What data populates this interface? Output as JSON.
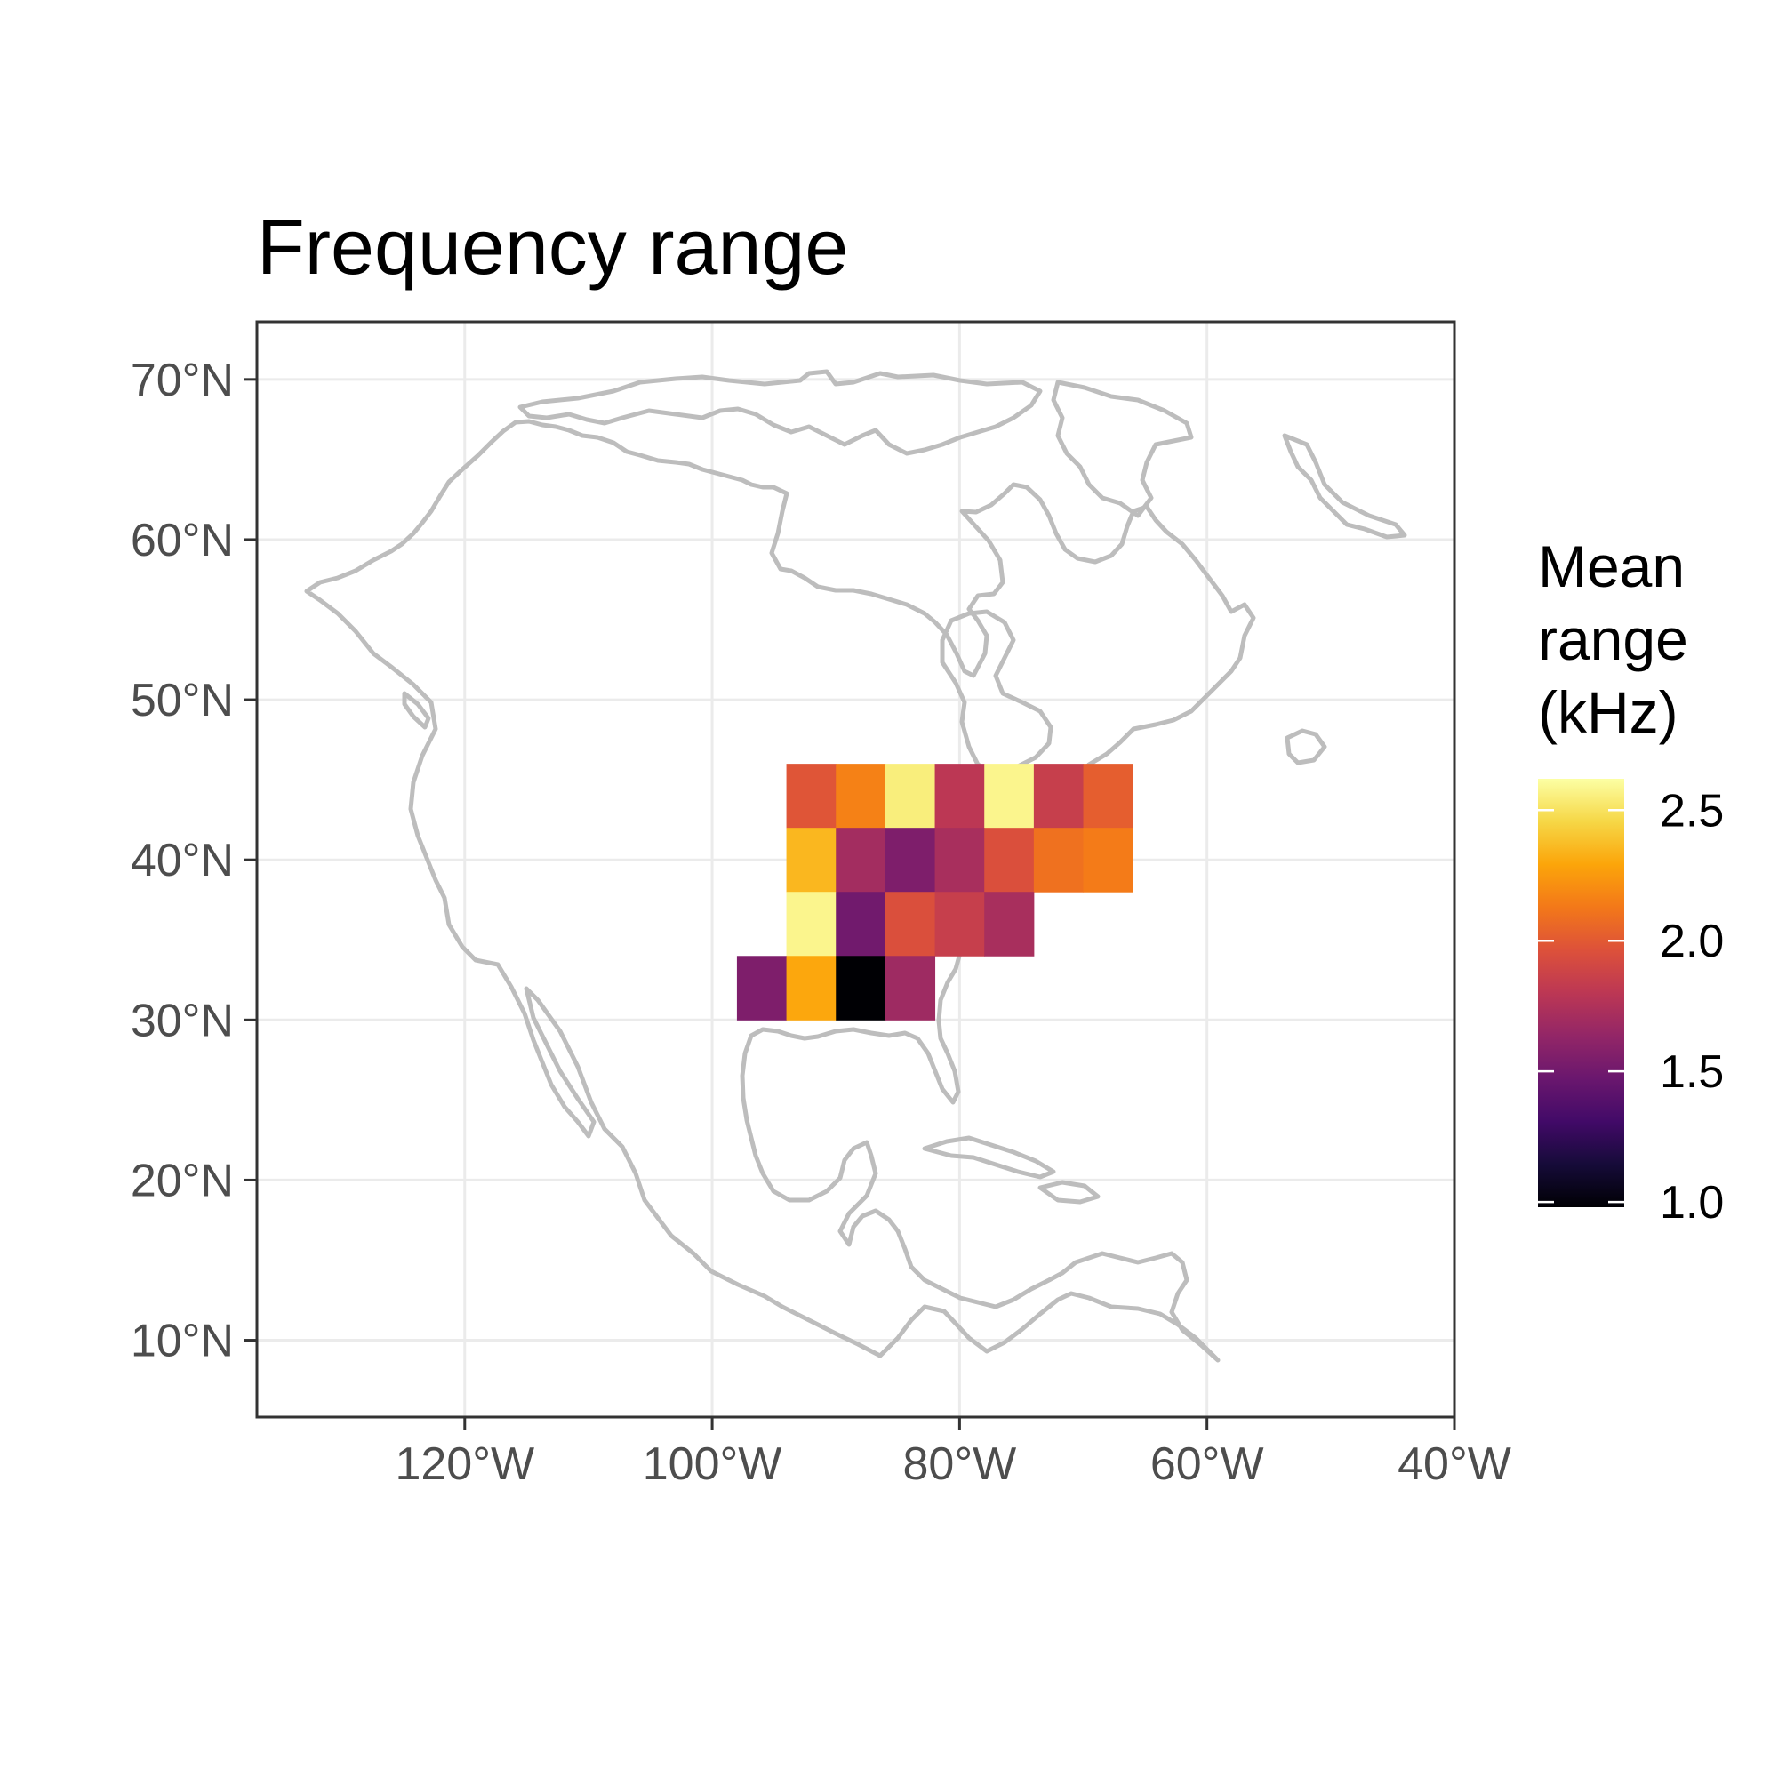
{
  "chart_data": {
    "type": "heatmap",
    "title": "Frequency range",
    "xlabel": "",
    "ylabel": "",
    "x_ticks": [
      "120°W",
      "100°W",
      "80°W",
      "60°W",
      "40°W"
    ],
    "x_tick_values": [
      -120,
      -100,
      -80,
      -60,
      -40
    ],
    "y_ticks": [
      "70°N",
      "60°N",
      "50°N",
      "40°N",
      "30°N",
      "20°N",
      "10°N"
    ],
    "y_tick_values": [
      70,
      60,
      50,
      40,
      30,
      20,
      10
    ],
    "xlim": [
      -136.8,
      -40
    ],
    "ylim": [
      5.2,
      73.6
    ],
    "grid": true,
    "legend": {
      "title_lines": [
        "Mean",
        "range",
        "(kHz)"
      ],
      "labels": [
        "2.5",
        "2.0",
        "1.5",
        "1.0"
      ],
      "label_values": [
        2.5,
        2.0,
        1.5,
        1.0
      ],
      "range": [
        0.98,
        2.62
      ],
      "palette": "inferno",
      "placement": "right"
    },
    "basemap": "North America coastlines",
    "basemap_color": "#bdbdbd",
    "cell_size_deg": [
      4,
      4
    ],
    "cells": [
      {
        "lon": -92,
        "lat": 44,
        "value": 1.98
      },
      {
        "lon": -88,
        "lat": 44,
        "value": 2.16
      },
      {
        "lon": -84,
        "lat": 44,
        "value": 2.55
      },
      {
        "lon": -80,
        "lat": 44,
        "value": 1.8
      },
      {
        "lon": -76,
        "lat": 44,
        "value": 2.58
      },
      {
        "lon": -72,
        "lat": 44,
        "value": 1.85
      },
      {
        "lon": -68,
        "lat": 44,
        "value": 2.02
      },
      {
        "lon": -92,
        "lat": 40,
        "value": 2.35
      },
      {
        "lon": -88,
        "lat": 40,
        "value": 1.7
      },
      {
        "lon": -84,
        "lat": 40,
        "value": 1.55
      },
      {
        "lon": -80,
        "lat": 40,
        "value": 1.72
      },
      {
        "lon": -76,
        "lat": 40,
        "value": 1.95
      },
      {
        "lon": -72,
        "lat": 40,
        "value": 2.1
      },
      {
        "lon": -68,
        "lat": 40,
        "value": 2.14
      },
      {
        "lon": -92,
        "lat": 36,
        "value": 2.58
      },
      {
        "lon": -88,
        "lat": 36,
        "value": 1.5
      },
      {
        "lon": -84,
        "lat": 36,
        "value": 1.95
      },
      {
        "lon": -80,
        "lat": 36,
        "value": 1.85
      },
      {
        "lon": -76,
        "lat": 36,
        "value": 1.72
      },
      {
        "lon": -96,
        "lat": 32,
        "value": 1.55
      },
      {
        "lon": -92,
        "lat": 32,
        "value": 2.3
      },
      {
        "lon": -88,
        "lat": 32,
        "value": 0.98
      },
      {
        "lon": -84,
        "lat": 32,
        "value": 1.68
      }
    ]
  }
}
